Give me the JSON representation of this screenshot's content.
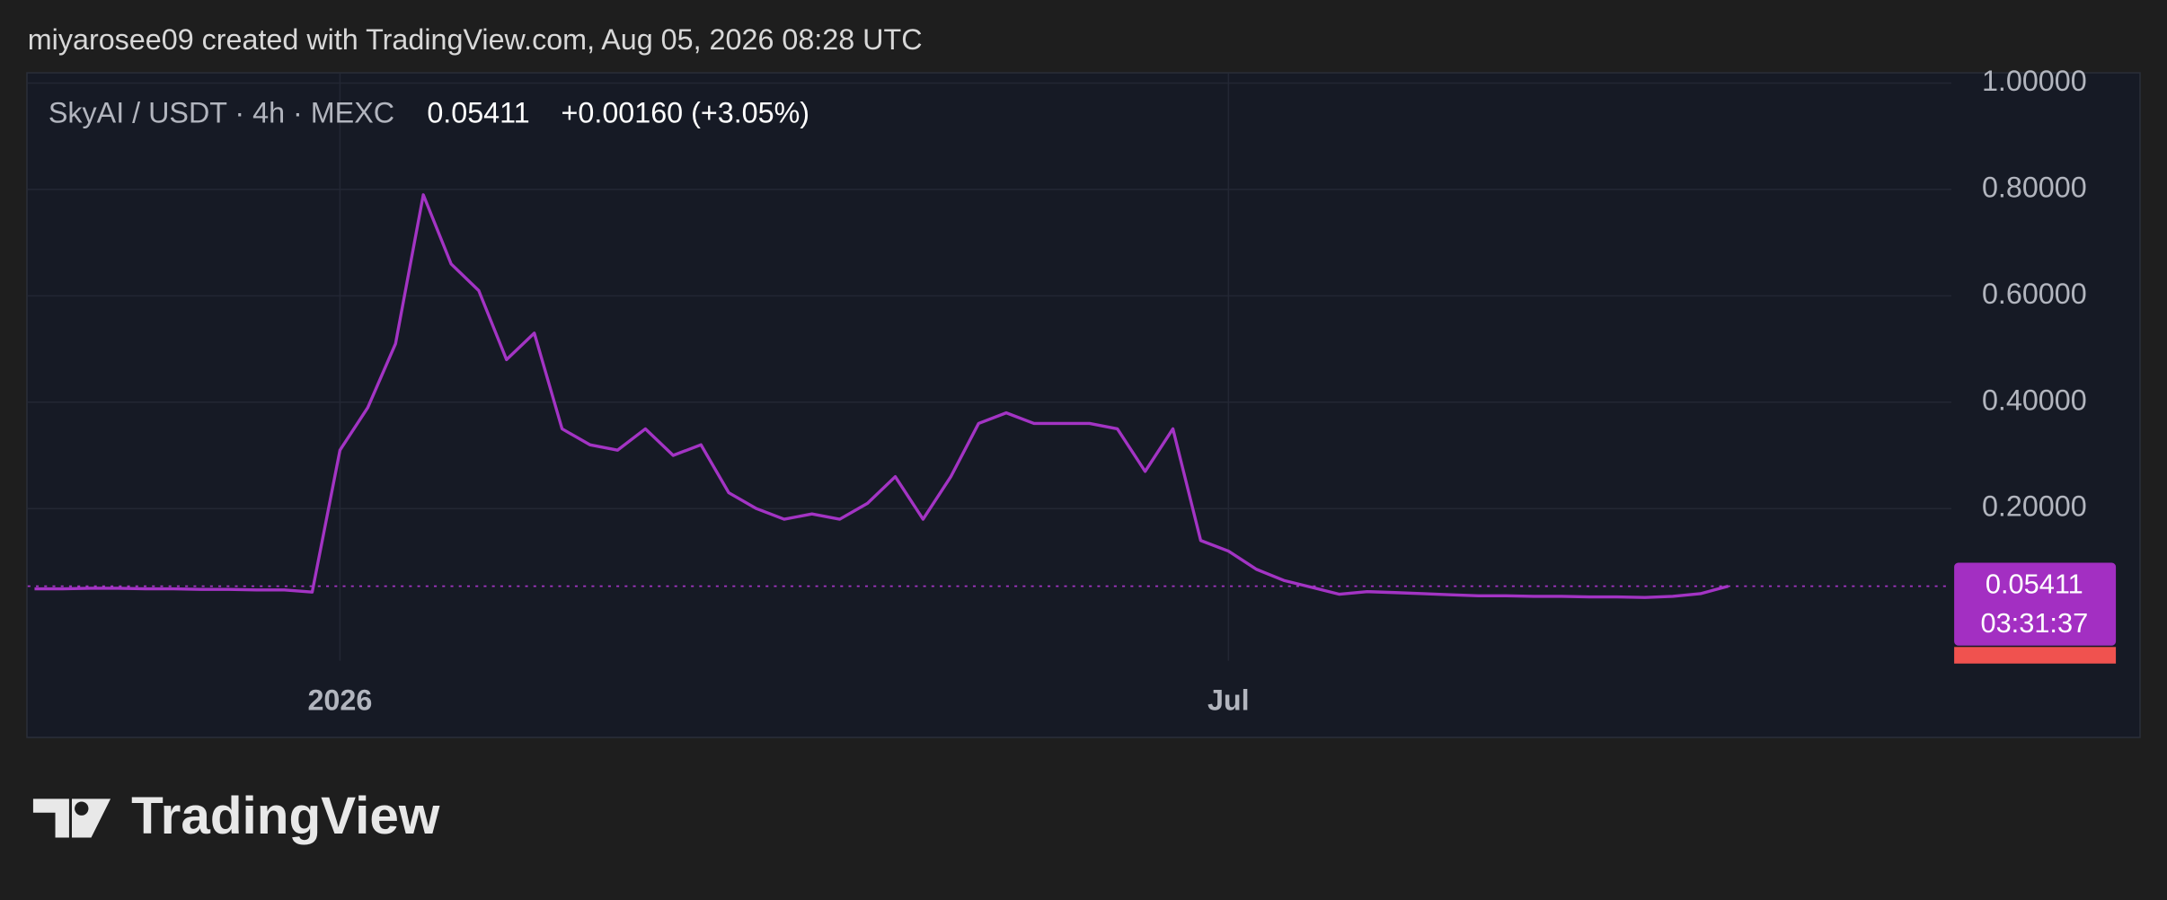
{
  "header": "miyarosee09 created with TradingView.com, Aug 05, 2026 08:28 UTC",
  "brand": "TradingView",
  "chart_data": {
    "type": "line",
    "title": "SkyAI / USDT · 4h · MEXC",
    "last_price": 0.05411,
    "change": "+0.00160 (+3.05%)",
    "countdown": "03:31:37",
    "categories": [
      null,
      null,
      null,
      null,
      null,
      null,
      null,
      null,
      null,
      null,
      null,
      "2026",
      null,
      null,
      null,
      null,
      null,
      null,
      null,
      null,
      null,
      null,
      null,
      null,
      null,
      null,
      null,
      null,
      null,
      null,
      null,
      null,
      null,
      null,
      null,
      null,
      null,
      null,
      null,
      null,
      null,
      null,
      null,
      "Jul",
      null,
      null,
      null,
      null,
      null,
      null,
      null,
      null,
      null,
      null,
      null,
      null,
      null,
      null,
      null,
      null,
      null,
      null,
      null,
      null,
      null,
      null,
      null,
      null,
      null,
      null
    ],
    "series": [
      {
        "name": "SkyAI / USDT",
        "color": "#a334c4",
        "values": [
          0.049,
          0.049,
          0.05,
          0.05,
          0.049,
          0.049,
          0.048,
          0.048,
          0.047,
          0.047,
          0.043,
          0.31,
          0.39,
          0.51,
          0.79,
          0.66,
          0.61,
          0.48,
          0.53,
          0.35,
          0.32,
          0.31,
          0.35,
          0.3,
          0.32,
          0.23,
          0.2,
          0.18,
          0.19,
          0.18,
          0.21,
          0.26,
          0.18,
          0.26,
          0.36,
          0.38,
          0.36,
          0.36,
          0.36,
          0.35,
          0.27,
          0.35,
          0.14,
          0.12,
          0.086,
          0.065,
          0.052,
          0.039,
          0.044,
          0.042,
          0.04,
          0.038,
          0.036,
          0.036,
          0.035,
          0.035,
          0.034,
          0.034,
          0.033,
          0.035,
          0.04,
          0.054,
          null,
          null,
          null,
          null,
          null,
          null,
          null,
          null
        ]
      }
    ],
    "ylim": [
      -0.086,
      1.018
    ],
    "yticks": [
      {
        "value": 0.2,
        "label": "0.20000"
      },
      {
        "value": 0.4,
        "label": "0.40000"
      },
      {
        "value": 0.6,
        "label": "0.60000"
      },
      {
        "value": 0.8,
        "label": "0.80000"
      },
      {
        "value": 1.0,
        "label": "1.00000"
      }
    ],
    "grid": true
  }
}
